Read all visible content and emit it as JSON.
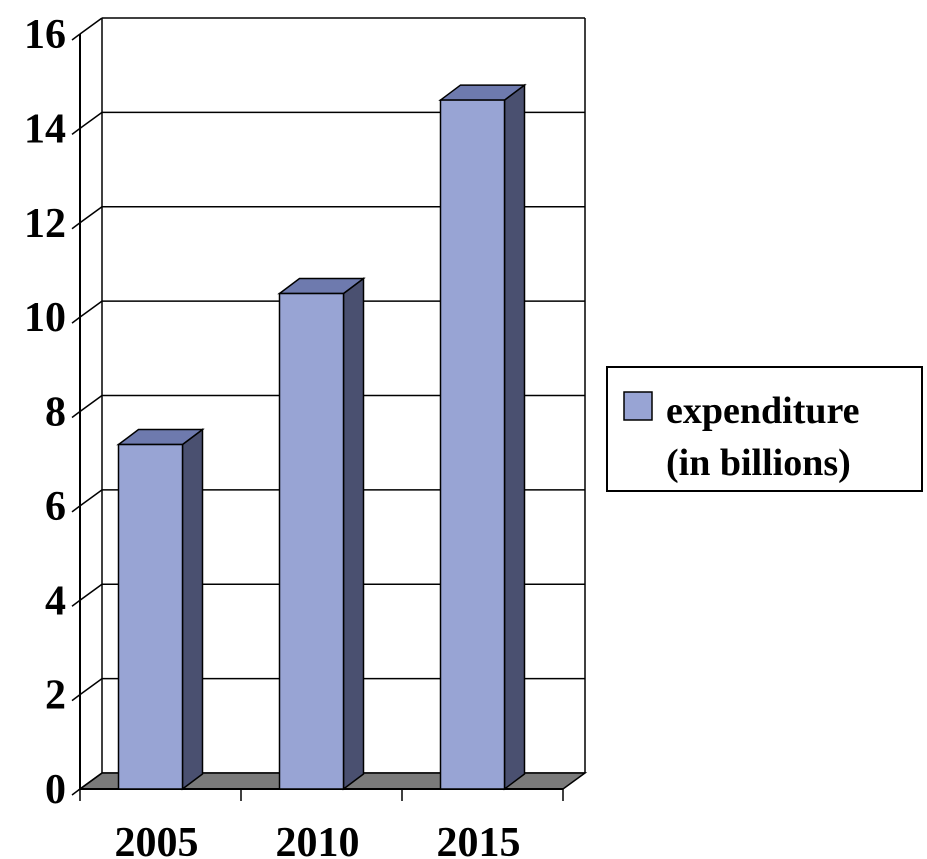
{
  "chart_data": {
    "type": "bar",
    "categories": [
      "2005",
      "2010",
      "2015"
    ],
    "series": [
      {
        "name": "expenditure (in billions)",
        "values": [
          7.3,
          10.5,
          14.6
        ]
      }
    ],
    "ylim": [
      0,
      16
    ],
    "yticks": [
      0,
      2,
      4,
      6,
      8,
      10,
      12,
      14,
      16
    ],
    "grid": true,
    "legend_position": "right",
    "legend_lines": [
      "expenditure",
      "(in billions)"
    ],
    "colors": {
      "bar_front": "#98A4D4",
      "bar_side": "#4A5070",
      "bar_top": "#6E7AAE",
      "floor": "#7A7A7A"
    },
    "title": "",
    "xlabel": "",
    "ylabel": ""
  }
}
